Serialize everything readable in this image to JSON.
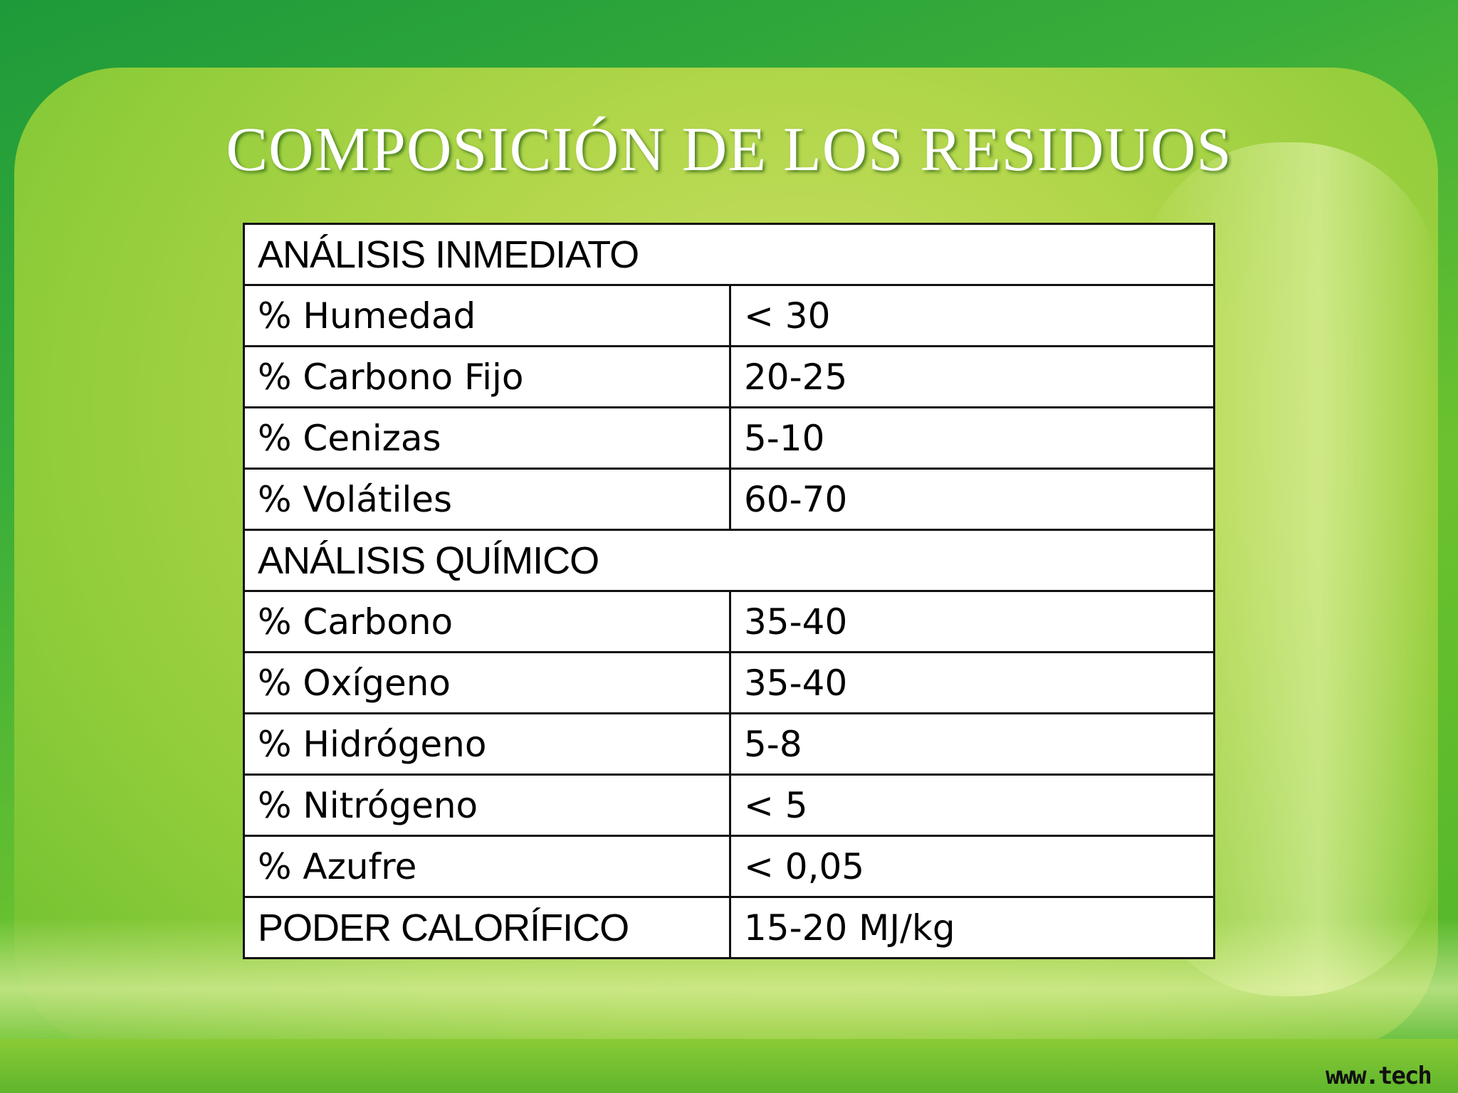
{
  "title": "COMPOSICIÓN DE LOS RESIDUOS",
  "table": {
    "rows": [
      {
        "type": "section",
        "label": "ANÁLISIS INMEDIATO"
      },
      {
        "type": "row",
        "label": "% Humedad",
        "value": "< 30"
      },
      {
        "type": "row",
        "label": "% Carbono Fijo",
        "value": "20-25"
      },
      {
        "type": "row",
        "label": "% Cenizas",
        "value": "5-10"
      },
      {
        "type": "row",
        "label": "% Volátiles",
        "value": "60-70"
      },
      {
        "type": "section",
        "label": "ANÁLISIS QUÍMICO"
      },
      {
        "type": "row",
        "label": "% Carbono",
        "value": "35-40"
      },
      {
        "type": "row",
        "label": "% Oxígeno",
        "value": "35-40"
      },
      {
        "type": "row",
        "label": "% Hidrógeno",
        "value": "5-8"
      },
      {
        "type": "row",
        "label": "% Nitrógeno",
        "value": "< 5"
      },
      {
        "type": "row",
        "label": "% Azufre",
        "value": "< 0,05"
      },
      {
        "type": "headrow",
        "label": "PODER CALORÍFICO",
        "value": "15-20 MJ/kg"
      }
    ]
  },
  "logo": "www.tech",
  "colors": {
    "background": "#4fb52a",
    "panel": "#b2d64a",
    "title": "#ffffff"
  }
}
